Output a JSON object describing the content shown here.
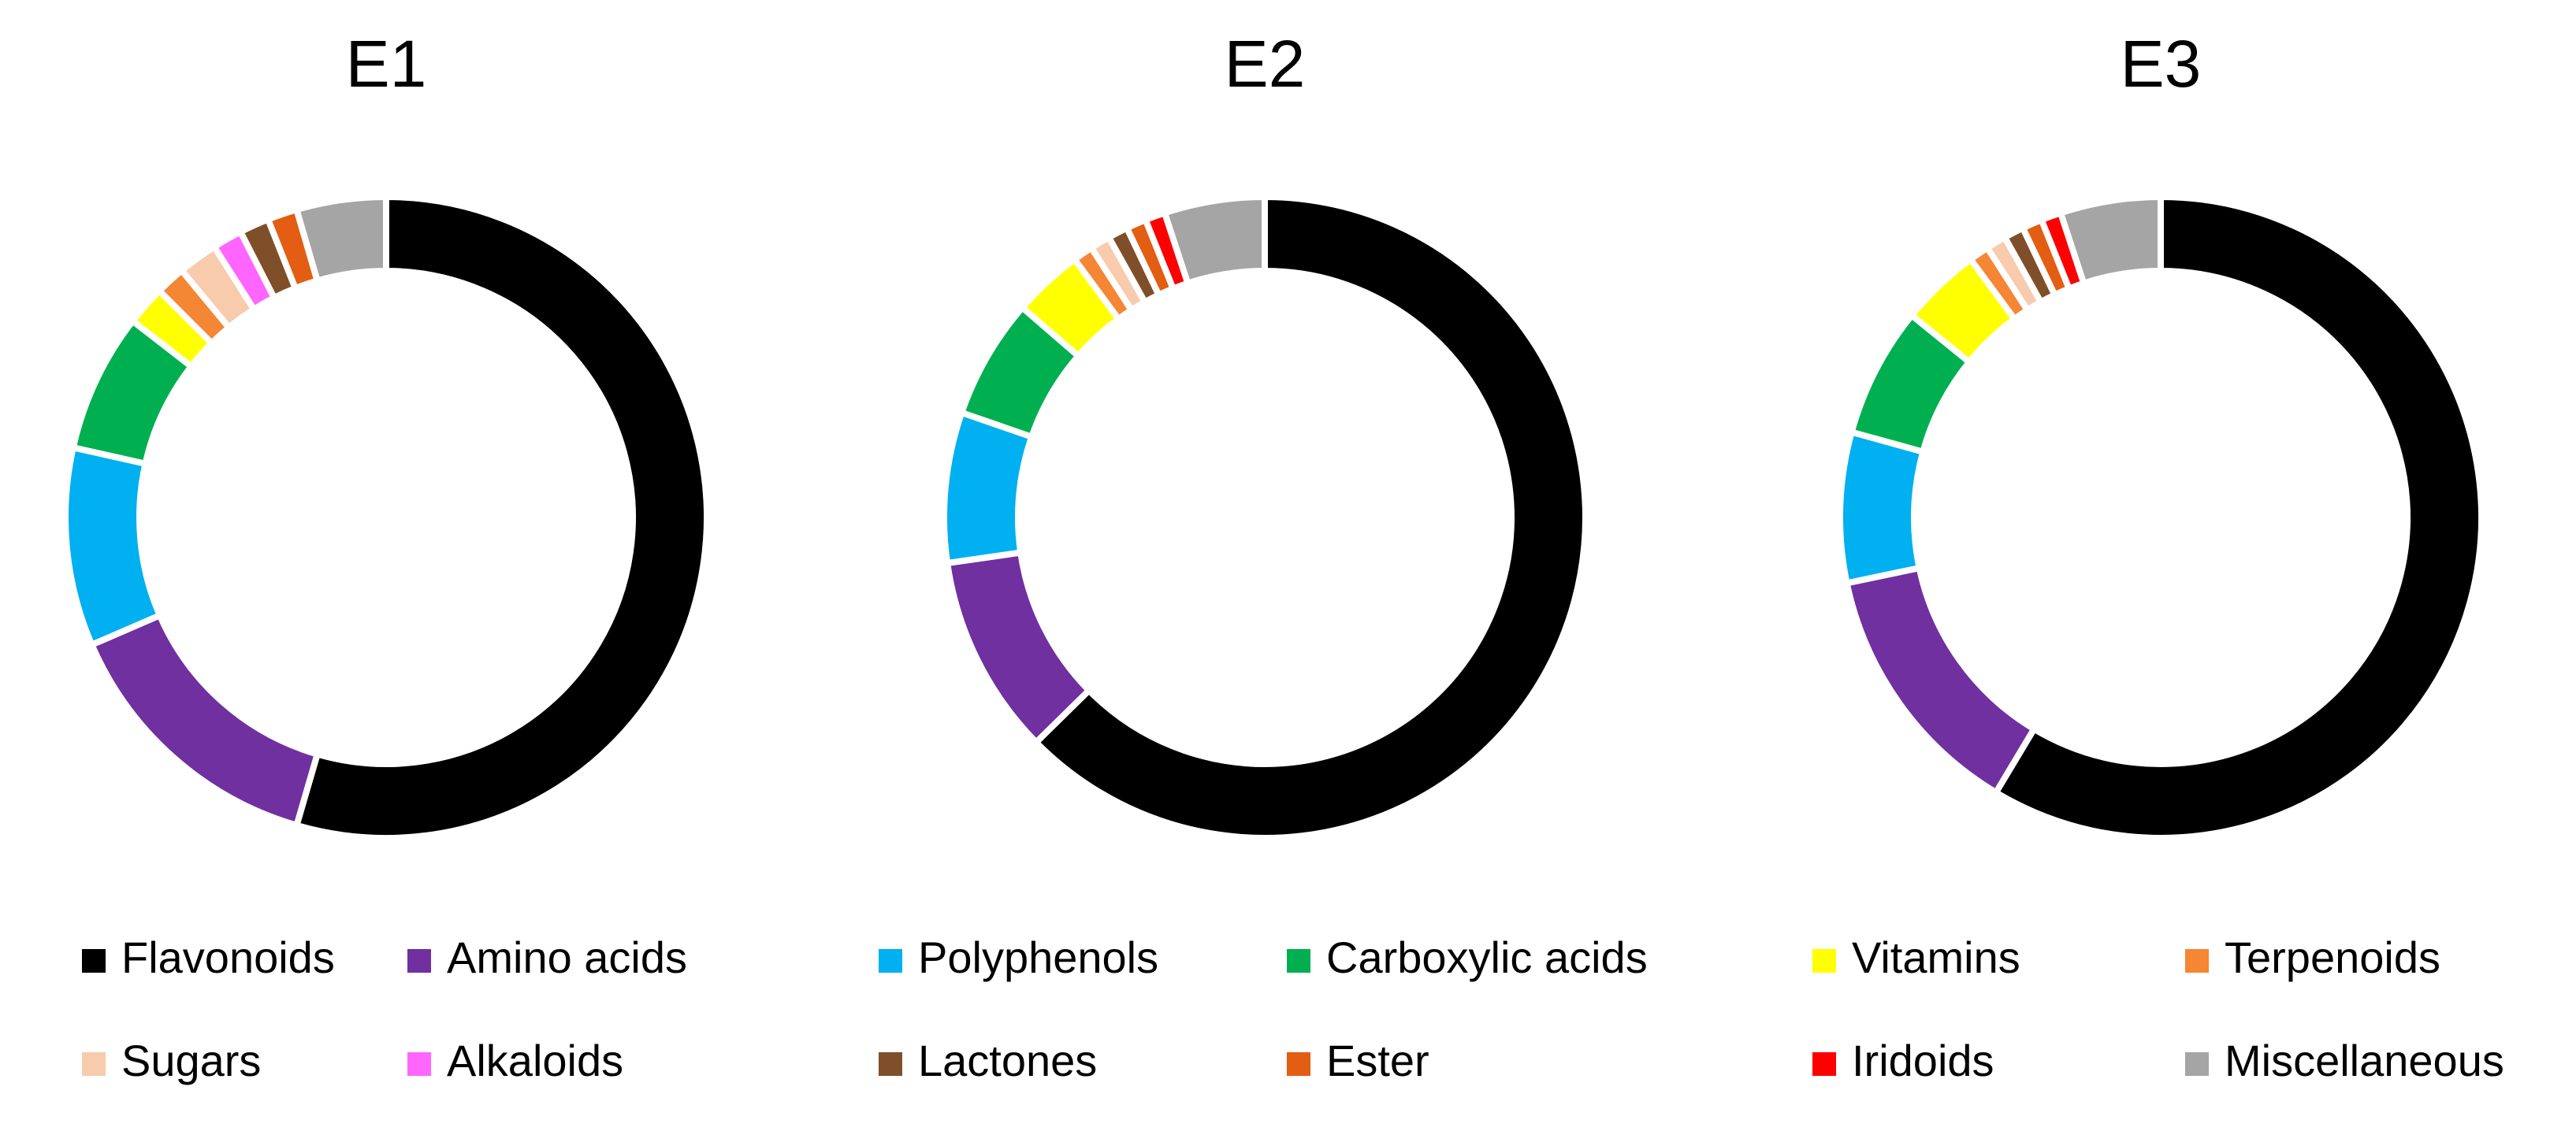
{
  "chart_data": [
    {
      "type": "pie",
      "title": "E1",
      "categories": [
        "Flavonoids",
        "Amino acids",
        "Polyphenols",
        "Carboxylic acids",
        "Vitamins",
        "Terpenoids",
        "Sugars",
        "Alkaloids",
        "Lactones",
        "Ester",
        "Iridoids",
        "Miscellaneous"
      ],
      "colors": [
        "#000000",
        "#7030a0",
        "#00b0f0",
        "#00b050",
        "#ffff00",
        "#f58634",
        "#f8cbad",
        "#ff66ff",
        "#7f4f2a",
        "#e35d12",
        "#ff0000",
        "#a5a5a5"
      ],
      "values": [
        54.5,
        14,
        10,
        7,
        2,
        1.5,
        2,
        1.5,
        1.5,
        1.5,
        0,
        4.5
      ]
    },
    {
      "type": "pie",
      "title": "E2",
      "categories": [
        "Flavonoids",
        "Amino acids",
        "Polyphenols",
        "Carboxylic acids",
        "Vitamins",
        "Terpenoids",
        "Sugars",
        "Alkaloids",
        "Lactones",
        "Ester",
        "Iridoids",
        "Miscellaneous"
      ],
      "colors": [
        "#000000",
        "#7030a0",
        "#00b0f0",
        "#00b050",
        "#ffff00",
        "#f58634",
        "#f8cbad",
        "#ff66ff",
        "#7f4f2a",
        "#e35d12",
        "#ff0000",
        "#a5a5a5"
      ],
      "values": [
        62,
        10,
        7.5,
        6,
        3.5,
        1,
        1,
        0,
        1,
        1,
        1,
        5
      ]
    },
    {
      "type": "pie",
      "title": "E3",
      "categories": [
        "Flavonoids",
        "Amino acids",
        "Polyphenols",
        "Carboxylic acids",
        "Vitamins",
        "Terpenoids",
        "Sugars",
        "Alkaloids",
        "Lactones",
        "Ester",
        "Iridoids",
        "Miscellaneous"
      ],
      "colors": [
        "#000000",
        "#7030a0",
        "#00b0f0",
        "#00b050",
        "#ffff00",
        "#f58634",
        "#f8cbad",
        "#ff66ff",
        "#7f4f2a",
        "#e35d12",
        "#ff0000",
        "#a5a5a5"
      ],
      "values": [
        58,
        13,
        7.5,
        6.5,
        4,
        1,
        1,
        0,
        1,
        1,
        1,
        5
      ]
    }
  ]
}
